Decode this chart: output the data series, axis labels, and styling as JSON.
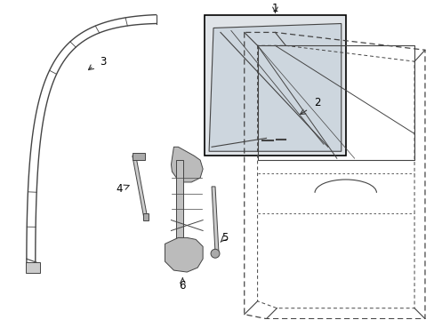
{
  "background_color": "#ffffff",
  "fig_width": 4.89,
  "fig_height": 3.6,
  "dpi": 100,
  "line_color": "#444444",
  "arrow_color": "#333333",
  "box_fill": "#e0e4e8",
  "door_fill": "#ffffff"
}
